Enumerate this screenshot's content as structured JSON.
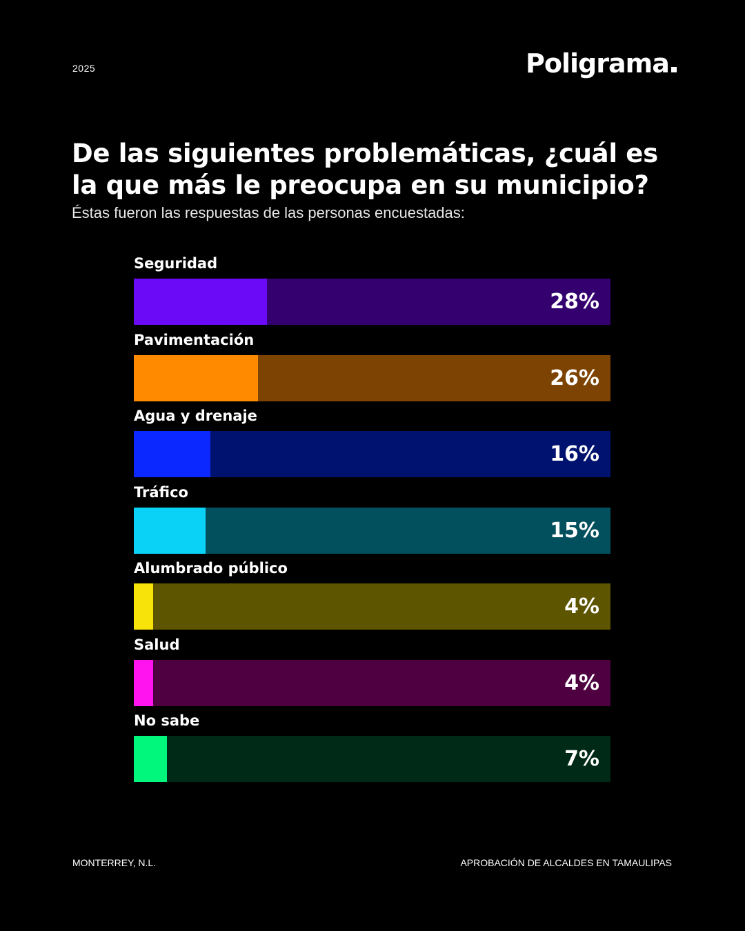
{
  "header": {
    "year": "2025",
    "brand": "Poligrama"
  },
  "title": "De las siguientes problemáticas, ¿cuál es la que más le preocupa en su municipio?",
  "subtitle": "Éstas fueron las respuestas de las personas encuestadas:",
  "footer": {
    "location": "MONTERREY, N.L.",
    "source": "APROBACIÓN DE ALCALDES EN TAMAULIPAS"
  },
  "chart_data": {
    "type": "bar",
    "orientation": "horizontal",
    "categories": [
      "Seguridad",
      "Pavimentación",
      "Agua y drenaje",
      "Tráfico",
      "Alumbrado público",
      "Salud",
      "No sabe"
    ],
    "values": [
      28,
      26,
      16,
      15,
      4,
      4,
      7
    ],
    "value_labels": [
      "28%",
      "26%",
      "16%",
      "15%",
      "4%",
      "4%",
      "7%"
    ],
    "xlim": [
      0,
      100
    ],
    "colors": [
      {
        "fill": "#6a0af7",
        "track": "#34006f"
      },
      {
        "fill": "#ff8a00",
        "track": "#7d4302"
      },
      {
        "fill": "#0a28ff",
        "track": "#00126f"
      },
      {
        "fill": "#0ad2f7",
        "track": "#024f5d"
      },
      {
        "fill": "#f7e20a",
        "track": "#5e5500"
      },
      {
        "fill": "#ff14f0",
        "track": "#4e0040"
      },
      {
        "fill": "#00f77c",
        "track": "#002a18"
      }
    ]
  }
}
